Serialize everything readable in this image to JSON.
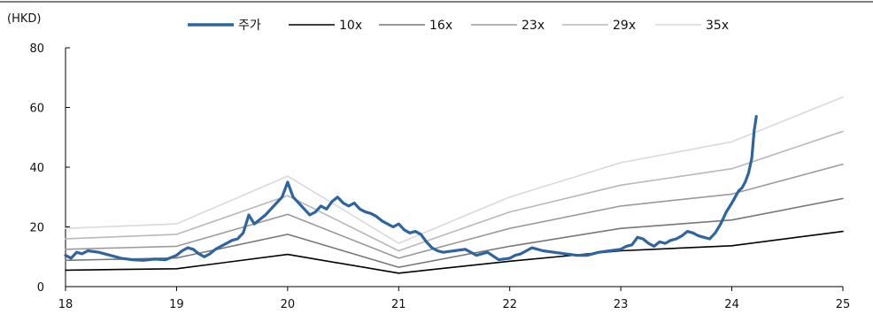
{
  "chart_data": {
    "type": "line",
    "unit_label": "(HKD)",
    "x_ticks": [
      "18",
      "19",
      "20",
      "21",
      "22",
      "23",
      "24",
      "25"
    ],
    "y_ticks": [
      "0",
      "20",
      "40",
      "60",
      "80"
    ],
    "ylim": [
      0,
      80
    ],
    "xlim": [
      18,
      25
    ],
    "legend_position": "top",
    "grid": false,
    "series": [
      {
        "name": "주가",
        "color": "#2e64a0",
        "x": [
          18.0,
          18.05,
          18.1,
          18.15,
          18.2,
          18.3,
          18.4,
          18.5,
          18.6,
          18.7,
          18.8,
          18.9,
          19.0,
          19.05,
          19.1,
          19.15,
          19.2,
          19.25,
          19.3,
          19.35,
          19.4,
          19.45,
          19.5,
          19.55,
          19.6,
          19.65,
          19.7,
          19.75,
          19.8,
          19.85,
          19.9,
          19.95,
          20.0,
          20.05,
          20.1,
          20.15,
          20.2,
          20.25,
          20.3,
          20.35,
          20.4,
          20.45,
          20.5,
          20.55,
          20.6,
          20.65,
          20.7,
          20.75,
          20.8,
          20.85,
          20.9,
          20.95,
          21.0,
          21.05,
          21.1,
          21.15,
          21.2,
          21.25,
          21.3,
          21.35,
          21.4,
          21.5,
          21.6,
          21.7,
          21.8,
          21.9,
          22.0,
          22.05,
          22.1,
          22.15,
          22.2,
          22.3,
          22.4,
          22.5,
          22.6,
          22.7,
          22.8,
          22.9,
          23.0,
          23.05,
          23.1,
          23.15,
          23.2,
          23.25,
          23.3,
          23.35,
          23.4,
          23.45,
          23.5,
          23.55,
          23.6,
          23.65,
          23.7,
          23.75,
          23.8,
          23.85,
          23.9,
          23.95,
          24.0,
          24.03,
          24.06,
          24.09,
          24.12,
          24.15,
          24.18,
          24.2,
          24.22
        ],
        "values": [
          10.5,
          9.5,
          11.5,
          11.0,
          12.0,
          11.5,
          10.5,
          9.5,
          9.0,
          8.8,
          9.2,
          9.0,
          10.5,
          12.0,
          13.0,
          12.5,
          11.0,
          10.0,
          11.0,
          12.5,
          13.5,
          14.5,
          15.5,
          16.0,
          18.0,
          24.0,
          21.0,
          22.5,
          24.0,
          26.0,
          28.0,
          30.0,
          35.0,
          30.0,
          28.0,
          26.0,
          24.0,
          25.0,
          27.0,
          26.0,
          28.5,
          30.0,
          28.0,
          27.0,
          28.0,
          26.0,
          25.0,
          24.5,
          23.5,
          22.0,
          21.0,
          20.0,
          21.0,
          19.0,
          18.0,
          18.5,
          17.5,
          15.0,
          13.0,
          12.0,
          11.5,
          12.0,
          12.5,
          10.5,
          11.5,
          9.0,
          9.5,
          10.5,
          11.0,
          12.0,
          13.0,
          12.0,
          11.5,
          11.0,
          10.5,
          10.5,
          11.5,
          12.0,
          12.5,
          13.5,
          14.0,
          16.5,
          16.0,
          14.5,
          13.5,
          15.0,
          14.5,
          15.5,
          16.0,
          17.0,
          18.5,
          18.0,
          17.0,
          16.5,
          16.0,
          18.0,
          21.0,
          25.0,
          28.0,
          30.0,
          32.0,
          33.0,
          35.0,
          38.0,
          43.0,
          52.0,
          57.0
        ]
      },
      {
        "name": "10x",
        "color": "#000000",
        "x": [
          18,
          19,
          20,
          21,
          22,
          23,
          24,
          25
        ],
        "values": [
          5.5,
          6.0,
          10.8,
          4.5,
          8.5,
          12.0,
          13.7,
          18.5
        ]
      },
      {
        "name": "16x",
        "color": "#777777",
        "x": [
          18,
          19,
          20,
          21,
          22,
          23,
          24,
          25
        ],
        "values": [
          8.8,
          9.6,
          17.5,
          6.5,
          13.5,
          19.5,
          22.3,
          29.5
        ]
      },
      {
        "name": "23x",
        "color": "#9a9a9a",
        "x": [
          18,
          19,
          20,
          21,
          22,
          23,
          24,
          25
        ],
        "values": [
          12.5,
          13.5,
          24.2,
          9.5,
          19.5,
          27.0,
          31.0,
          41.0
        ]
      },
      {
        "name": "29x",
        "color": "#b8b8b8",
        "x": [
          18,
          19,
          20,
          21,
          22,
          23,
          24,
          25
        ],
        "values": [
          16.0,
          17.5,
          30.5,
          12.0,
          25.0,
          34.0,
          39.5,
          52.0
        ]
      },
      {
        "name": "35x",
        "color": "#d9d9d9",
        "x": [
          18,
          19,
          20,
          21,
          22,
          23,
          24,
          25
        ],
        "values": [
          19.5,
          21.0,
          37.0,
          14.5,
          30.0,
          41.5,
          48.5,
          63.5
        ]
      }
    ]
  }
}
